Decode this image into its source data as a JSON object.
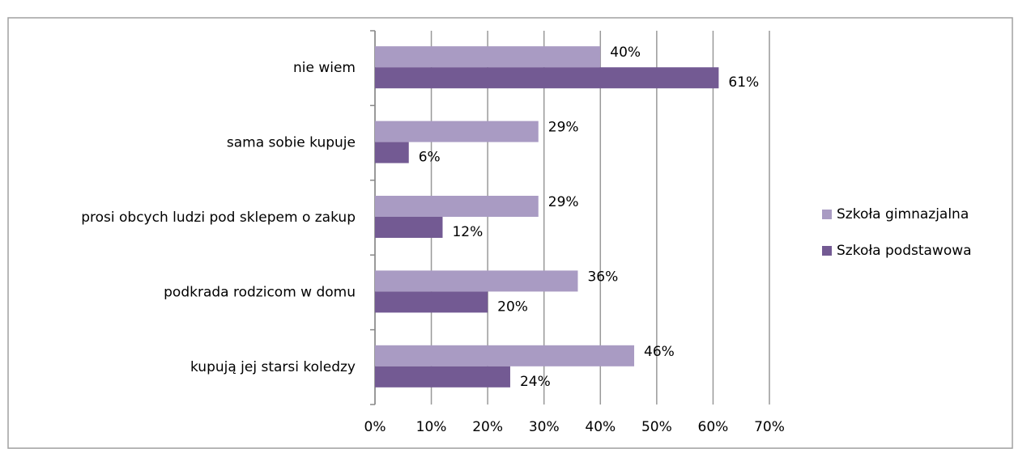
{
  "chart_data": {
    "type": "hbar",
    "categories": [
      "nie wiem",
      "sama sobie kupuje",
      "prosi obcych ludzi pod sklepem o zakup",
      "podkrada rodzicom w domu",
      "kupują jej starsi koledzy"
    ],
    "series": [
      {
        "name": "Szkoła gimnazjalna",
        "color": "#a99bc3",
        "values": [
          40,
          29,
          29,
          36,
          46
        ],
        "value_labels": [
          "40%",
          "29%",
          "29%",
          "36%",
          "46%"
        ]
      },
      {
        "name": "Szkoła podstawowa",
        "color": "#735a93",
        "values": [
          61,
          6,
          12,
          20,
          24
        ],
        "value_labels": [
          "61%",
          "6%",
          "12%",
          "20%",
          "24%"
        ]
      }
    ],
    "xlim": [
      0,
      70
    ],
    "xticks": [
      {
        "value": 0,
        "label": "0%"
      },
      {
        "value": 10,
        "label": "10%"
      },
      {
        "value": 20,
        "label": "20%"
      },
      {
        "value": 30,
        "label": "30%"
      },
      {
        "value": 40,
        "label": "40%"
      },
      {
        "value": 50,
        "label": "50%"
      },
      {
        "value": 60,
        "label": "60%"
      },
      {
        "value": 70,
        "label": "70%"
      }
    ],
    "grid": true,
    "legend": "right"
  }
}
